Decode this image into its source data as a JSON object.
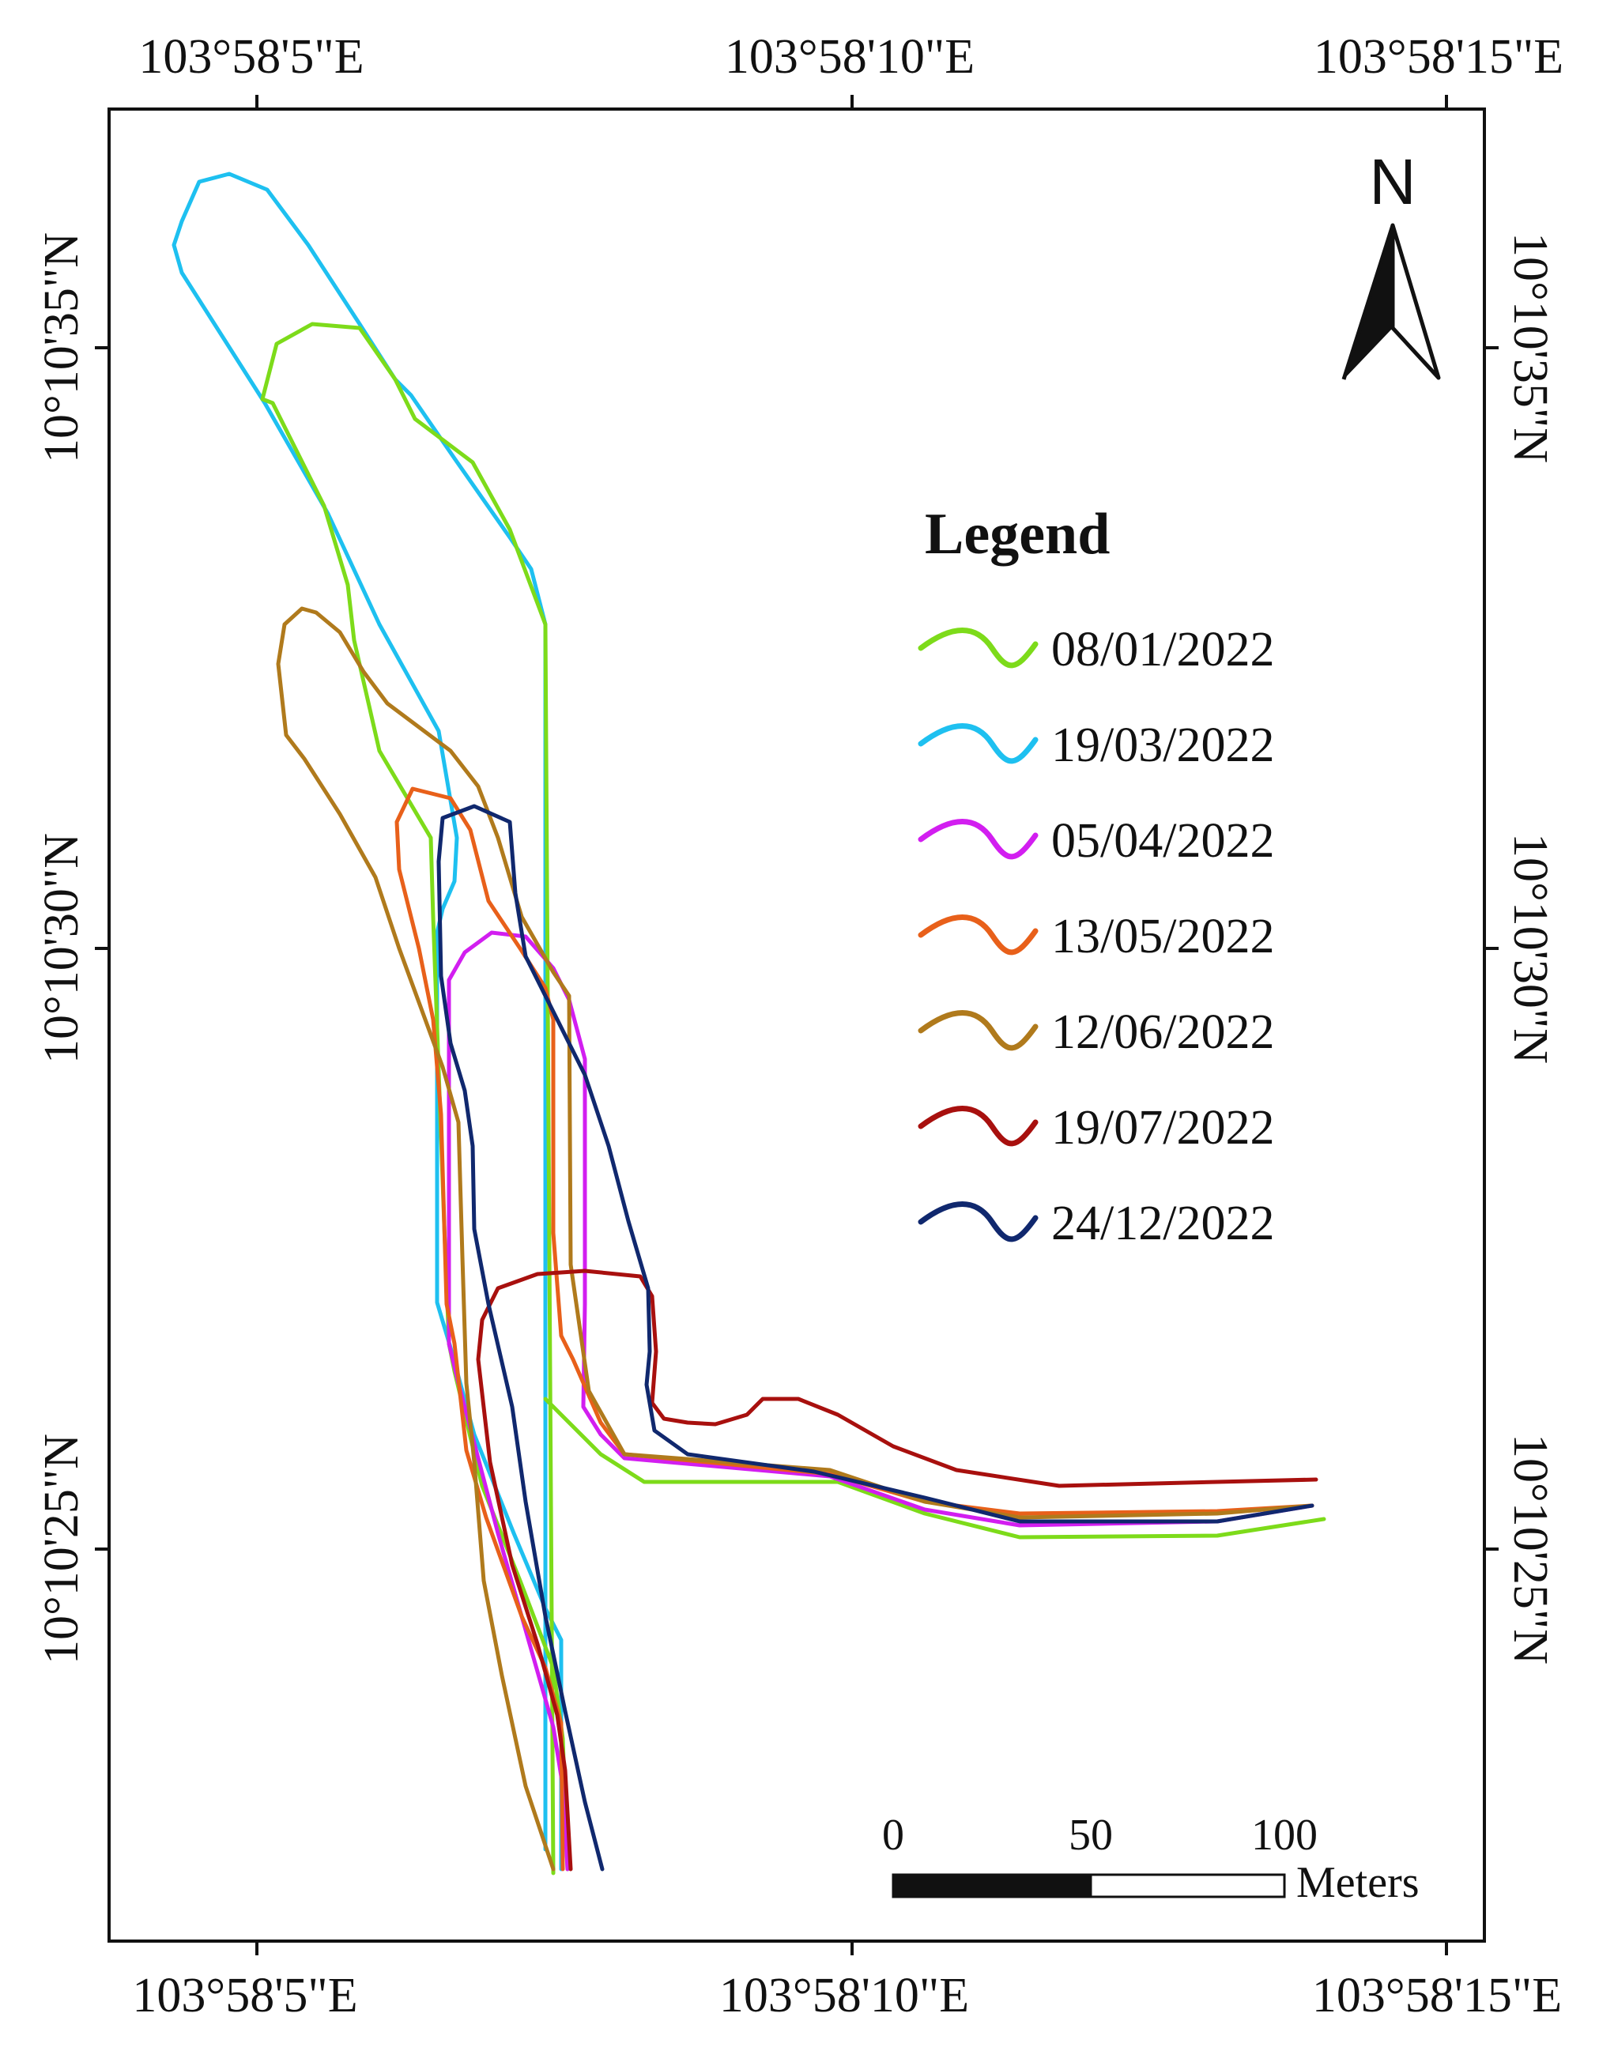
{
  "map": {
    "top_lon_labels": [
      "103°58'5\"E",
      "103°58'10\"E",
      "103°58'15\"E"
    ],
    "bottom_lon_labels": [
      "103°58'5\"E",
      "103°58'10\"E",
      "103°58'15\"E"
    ],
    "left_lat_labels": [
      "10°10'35\"N",
      "10°10'30\"N",
      "10°10'25\"N"
    ],
    "right_lat_labels": [
      "10°10'35\"N",
      "10°10'30\"N",
      "10°10'25\"N"
    ],
    "north_arrow": {
      "label": "N",
      "icon": "north-arrow-icon"
    },
    "legend": {
      "title": "Legend",
      "items": [
        {
          "label": "08/01/2022",
          "color": "#7ddb1a"
        },
        {
          "label": "19/03/2022",
          "color": "#1ec0f0"
        },
        {
          "label": "05/04/2022",
          "color": "#d21ef0"
        },
        {
          "label": "13/05/2022",
          "color": "#e8601a"
        },
        {
          "label": "12/06/2022",
          "color": "#b07a1c"
        },
        {
          "label": "19/07/2022",
          "color": "#a8100e"
        },
        {
          "label": "24/12/2022",
          "color": "#10286e"
        }
      ]
    },
    "scale_bar": {
      "ticks": [
        "0",
        "50",
        "100"
      ],
      "unit": "Meters"
    }
  }
}
